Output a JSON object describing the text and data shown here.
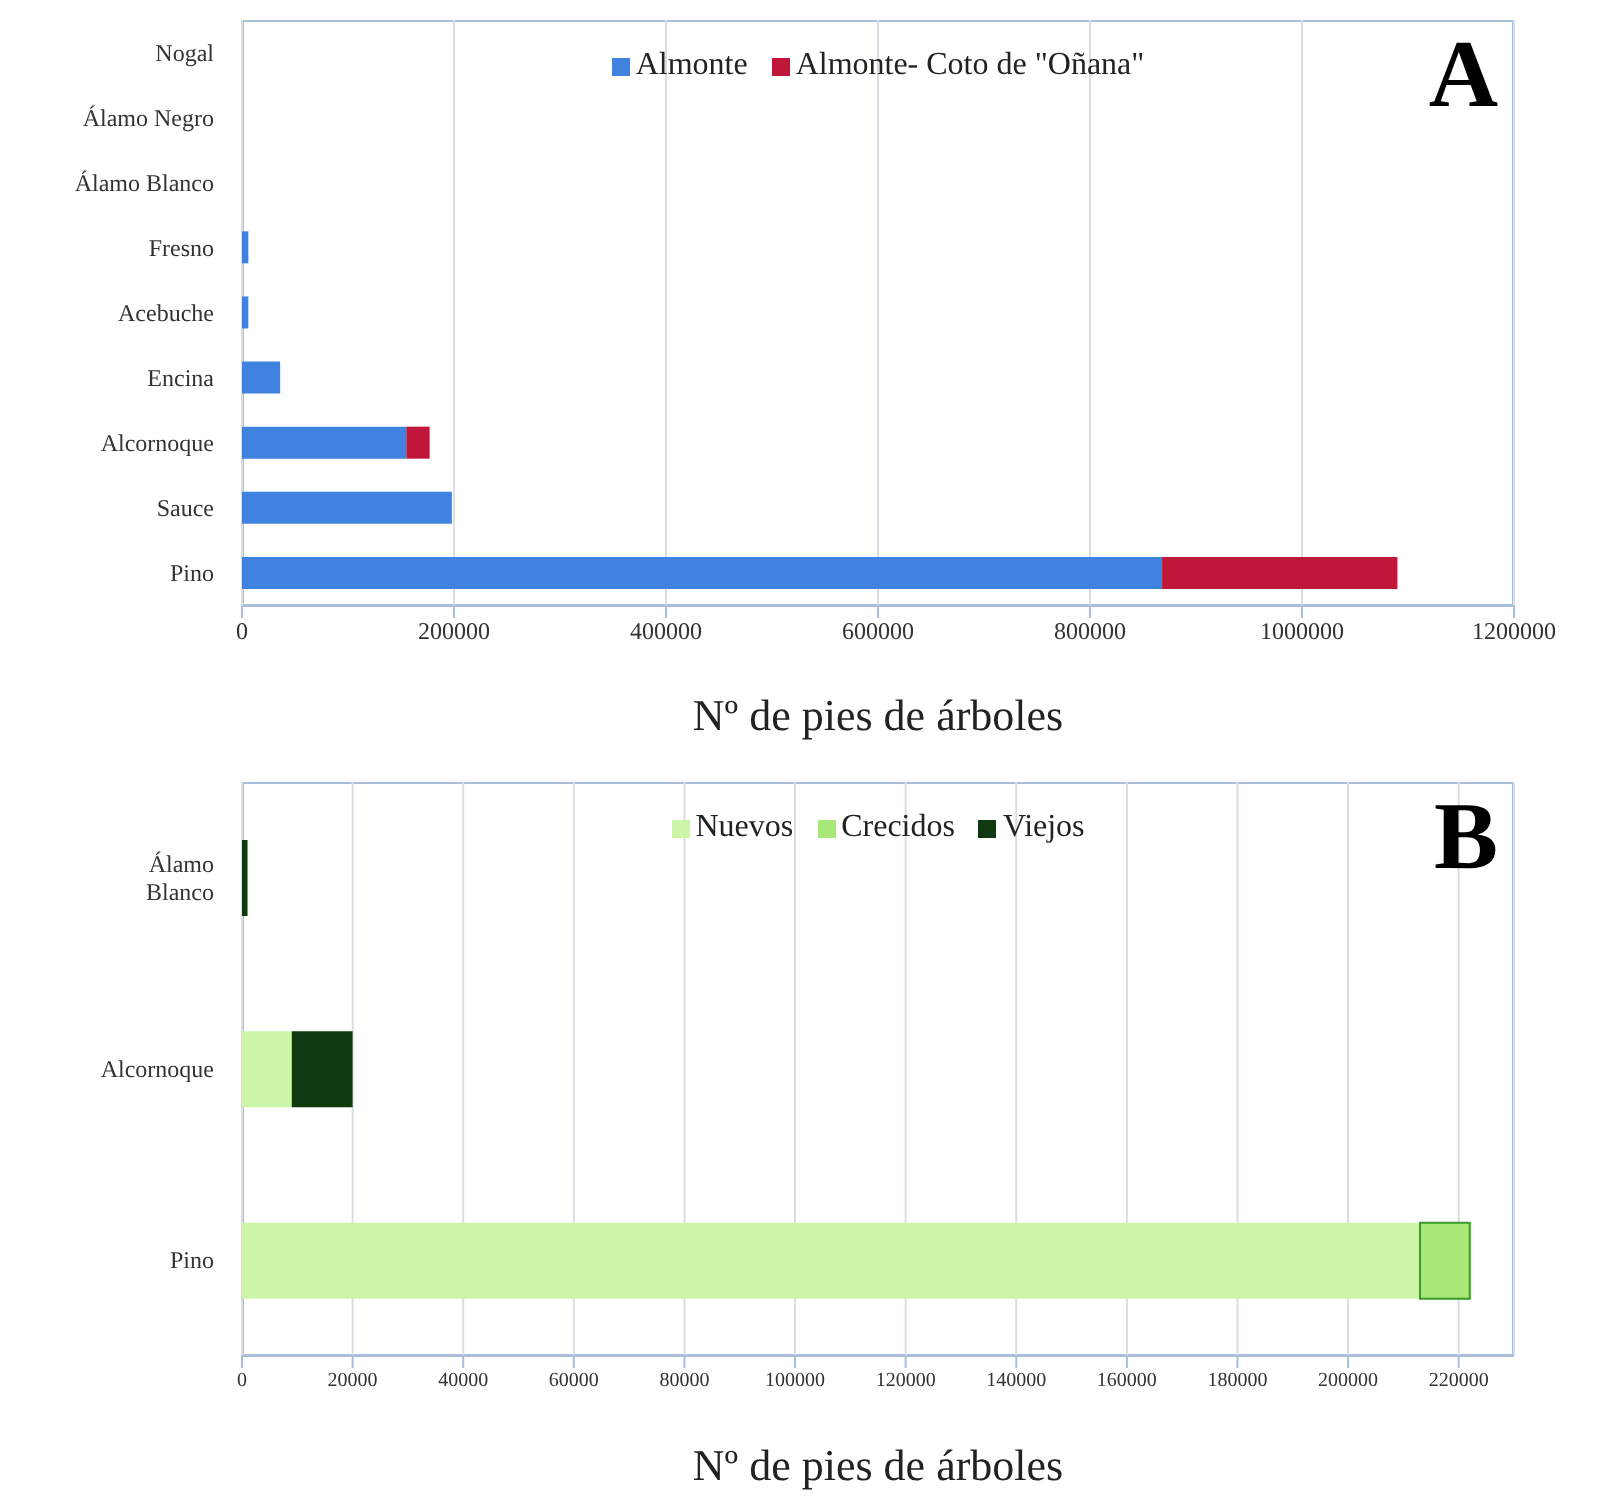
{
  "chart_data": [
    {
      "type": "bar",
      "orientation": "horizontal",
      "stacked": true,
      "categories": [
        "Nogal",
        "Álamo Negro",
        "Álamo Blanco",
        "Fresno",
        "Acebuche",
        "Encina",
        "Alcornoque",
        "Sauce",
        "Pino"
      ],
      "series": [
        {
          "name": "Almonte",
          "color": "#3f82e0",
          "values": [
            0,
            0,
            null,
            6000,
            6000,
            36000,
            155000,
            198000,
            868000
          ]
        },
        {
          "name": "Almonte- Coto de \"Oñana\"",
          "color": "#c0163a",
          "values": [
            0,
            0,
            0,
            0,
            0,
            0,
            22000,
            0,
            222000
          ]
        }
      ],
      "xlim": [
        0,
        1200000
      ],
      "xticks": [
        0,
        200000,
        400000,
        600000,
        800000,
        1000000,
        1200000
      ],
      "xlabel": "Nº de pies de árboles",
      "grid": "x",
      "legend": "top",
      "annotations": [
        "A"
      ]
    },
    {
      "type": "bar",
      "orientation": "horizontal",
      "stacked": true,
      "categories": [
        "Álamo Blanco",
        "Alcornoque",
        "Pino"
      ],
      "series": [
        {
          "name": "Nuevos",
          "color": "#ccf5a8",
          "values": [
            0,
            9000,
            213000
          ]
        },
        {
          "name": "Crecidos",
          "color": "#a8e878",
          "values": [
            0,
            0,
            9000
          ]
        },
        {
          "name": "Viejos",
          "color": "#0f3a10",
          "values": [
            1000,
            11000,
            0
          ]
        }
      ],
      "xlim": [
        0,
        230000
      ],
      "xticks": [
        0,
        20000,
        40000,
        60000,
        80000,
        100000,
        120000,
        140000,
        160000,
        180000,
        200000,
        220000
      ],
      "xlabel": "Nº de pies de árboles",
      "grid": "x",
      "legend": "top",
      "annotations": [
        "B"
      ]
    }
  ]
}
